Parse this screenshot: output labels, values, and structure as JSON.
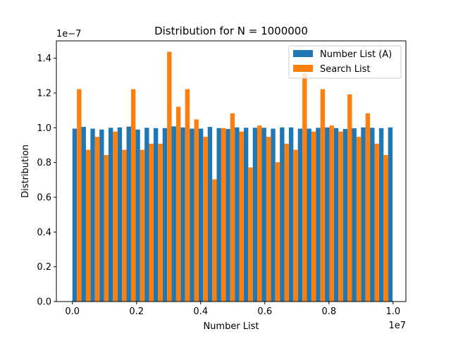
{
  "chart_data": {
    "type": "bar",
    "title": "Distribution for N = 1000000",
    "xlabel": "Number List",
    "ylabel": "Distribution",
    "x_offset_text": "1e7",
    "y_offset_text": "1e−7",
    "xlim": [
      -0.05,
      1.04
    ],
    "ylim": [
      0.0,
      1.5
    ],
    "x_ticks": [
      0.0,
      0.2,
      0.4,
      0.6,
      0.8,
      1.0
    ],
    "x_tick_labels": [
      "0.0",
      "0.2",
      "0.4",
      "0.6",
      "0.8",
      "1.0"
    ],
    "y_ticks": [
      0.0,
      0.2,
      0.4,
      0.6,
      0.8,
      1.0,
      1.2,
      1.4
    ],
    "y_tick_labels": [
      "0.0",
      "0.2",
      "0.4",
      "0.6",
      "0.8",
      "1.0",
      "1.2",
      "1.4"
    ],
    "grid": false,
    "legend_position": "top-right",
    "bin_start": 0.0,
    "bin_width": 0.028125,
    "series": [
      {
        "name": "Number List (A)",
        "color": "#1f77b4",
        "values": [
          0.995,
          1.005,
          0.995,
          0.99,
          1.0,
          1.002,
          1.007,
          0.99,
          1.0,
          0.998,
          0.998,
          1.008,
          1.002,
          0.995,
          0.995,
          1.005,
          0.998,
          0.993,
          1.002,
          1.0,
          1.0,
          1.0,
          0.995,
          1.002,
          1.002,
          0.995,
          0.995,
          1.0,
          1.002,
          0.998,
          0.993,
          0.997,
          1.002,
          1.0,
          0.998,
          1.002
        ]
      },
      {
        "name": "Search List",
        "color": "#ff7f0e",
        "values": [
          1.222,
          0.873,
          0.948,
          0.843,
          0.978,
          0.873,
          1.222,
          0.873,
          0.908,
          0.908,
          1.437,
          1.121,
          1.222,
          1.048,
          0.948,
          0.703,
          0.998,
          1.083,
          0.978,
          0.772,
          1.013,
          0.948,
          0.802,
          0.908,
          0.873,
          1.312,
          0.978,
          1.222,
          1.013,
          0.978,
          1.192,
          0.948,
          1.083,
          0.908,
          0.843,
          0.0
        ]
      }
    ]
  }
}
